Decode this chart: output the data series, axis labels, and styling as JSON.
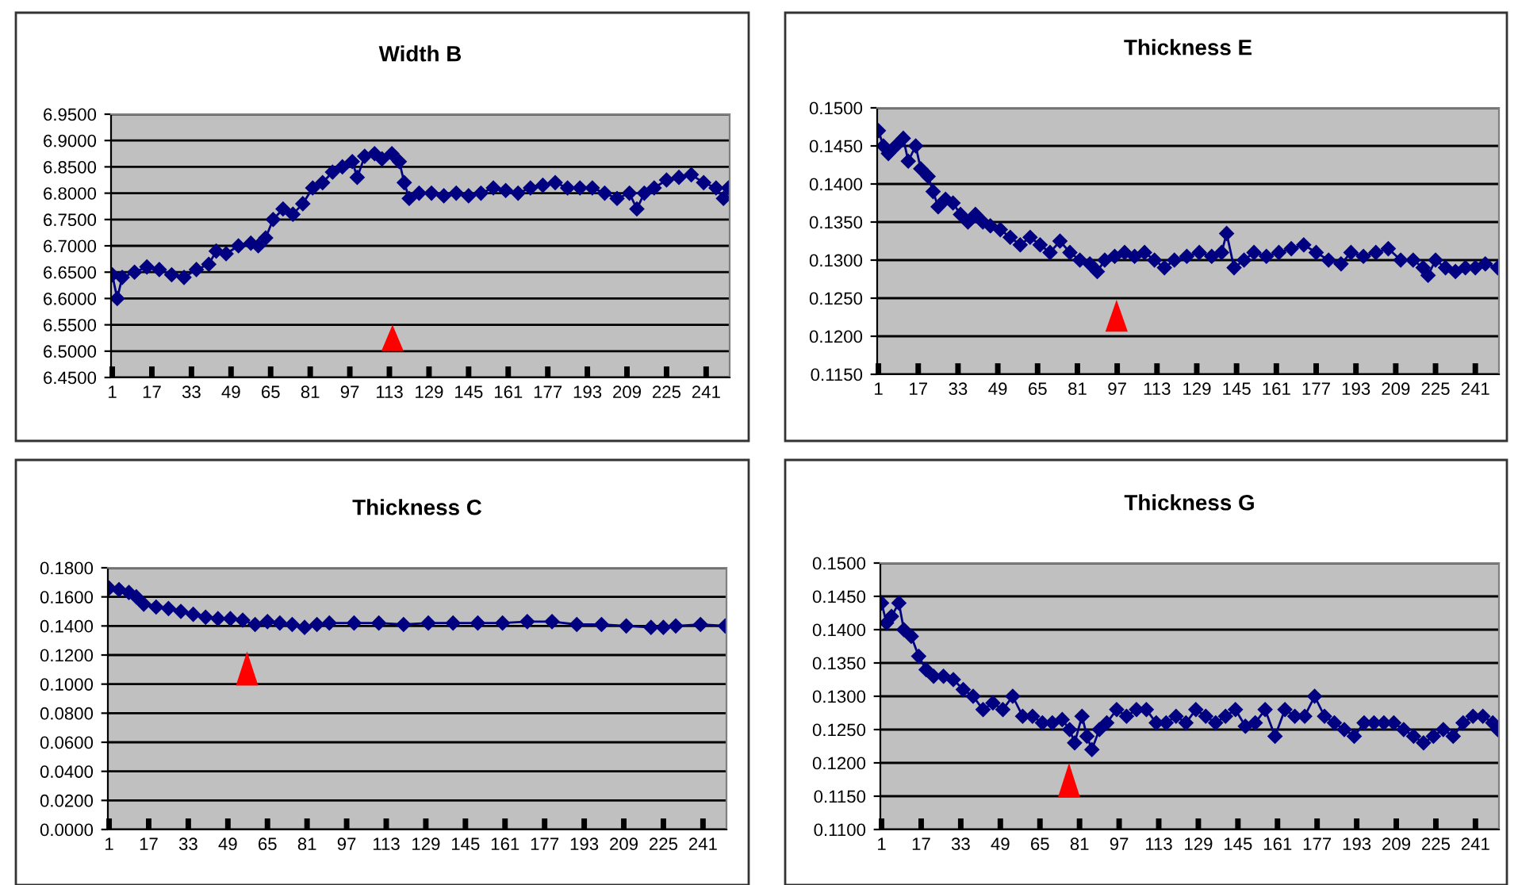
{
  "chart_data": [
    {
      "type": "line",
      "title": "Width B",
      "marker": "diamond",
      "line_style": "solid",
      "grid": "y",
      "xlim": [
        0.5,
        250.5
      ],
      "xticks": [
        1,
        17,
        33,
        49,
        65,
        81,
        97,
        113,
        129,
        145,
        161,
        177,
        193,
        209,
        225,
        241
      ],
      "ylim": [
        6.45,
        6.95
      ],
      "yticks": [
        {
          "value": 6.45,
          "label": "6.4500"
        },
        {
          "value": 6.5,
          "label": "6.5000"
        },
        {
          "value": 6.55,
          "label": "6.5500"
        },
        {
          "value": 6.6,
          "label": "6.6000"
        },
        {
          "value": 6.65,
          "label": "6.6500"
        },
        {
          "value": 6.7,
          "label": "6.7000"
        },
        {
          "value": 6.75,
          "label": "6.7500"
        },
        {
          "value": 6.8,
          "label": "6.8000"
        },
        {
          "value": 6.85,
          "label": "6.8500"
        },
        {
          "value": 6.9,
          "label": "6.9000"
        },
        {
          "value": 6.95,
          "label": "6.9500"
        }
      ],
      "series": [
        {
          "color": "#000080",
          "x": [
            1,
            3,
            5,
            10,
            15,
            20,
            25,
            30,
            35,
            40,
            43,
            47,
            52,
            57,
            60,
            63,
            66,
            70,
            74,
            78,
            82,
            86,
            90,
            94,
            98,
            100,
            103,
            107,
            110,
            114,
            117,
            119,
            121,
            125,
            130,
            135,
            140,
            145,
            150,
            155,
            160,
            165,
            170,
            175,
            180,
            185,
            190,
            195,
            200,
            205,
            210,
            213,
            216,
            220,
            225,
            230,
            235,
            240,
            245,
            248,
            250
          ],
          "values": [
            6.645,
            6.6,
            6.64,
            6.65,
            6.66,
            6.655,
            6.645,
            6.64,
            6.655,
            6.665,
            6.69,
            6.685,
            6.7,
            6.705,
            6.7,
            6.715,
            6.75,
            6.77,
            6.76,
            6.78,
            6.81,
            6.82,
            6.84,
            6.85,
            6.86,
            6.83,
            6.87,
            6.875,
            6.865,
            6.875,
            6.86,
            6.82,
            6.79,
            6.8,
            6.8,
            6.795,
            6.8,
            6.795,
            6.8,
            6.81,
            6.805,
            6.8,
            6.81,
            6.815,
            6.82,
            6.81,
            6.81,
            6.81,
            6.8,
            6.79,
            6.8,
            6.77,
            6.8,
            6.81,
            6.825,
            6.83,
            6.835,
            6.82,
            6.81,
            6.79,
            6.81
          ]
        }
      ]
    },
    {
      "type": "line",
      "title": "Thickness E",
      "marker": "diamond",
      "line_style": "solid",
      "grid": "y",
      "xlim": [
        0.5,
        250.5
      ],
      "xticks": [
        1,
        17,
        33,
        49,
        65,
        81,
        97,
        113,
        129,
        145,
        161,
        177,
        193,
        209,
        225,
        241
      ],
      "ylim": [
        0.115,
        0.15
      ],
      "yticks": [
        {
          "value": 0.115,
          "label": "0.1150"
        },
        {
          "value": 0.12,
          "label": "0.1200"
        },
        {
          "value": 0.125,
          "label": "0.1250"
        },
        {
          "value": 0.13,
          "label": "0.1300"
        },
        {
          "value": 0.135,
          "label": "0.1350"
        },
        {
          "value": 0.14,
          "label": "0.1400"
        },
        {
          "value": 0.145,
          "label": "0.1450"
        },
        {
          "value": 0.15,
          "label": "0.1500"
        }
      ],
      "series": [
        {
          "color": "#000080",
          "x": [
            1,
            3,
            5,
            8,
            11,
            13,
            16,
            18,
            21,
            23,
            25,
            28,
            31,
            34,
            37,
            40,
            43,
            46,
            50,
            54,
            58,
            62,
            66,
            70,
            74,
            78,
            82,
            86,
            89,
            92,
            96,
            100,
            104,
            108,
            112,
            116,
            120,
            125,
            130,
            135,
            139,
            141,
            144,
            148,
            152,
            157,
            162,
            167,
            172,
            177,
            182,
            187,
            191,
            196,
            201,
            206,
            211,
            216,
            220,
            222,
            225,
            229,
            233,
            237,
            241,
            245,
            250
          ],
          "values": [
            0.147,
            0.145,
            0.144,
            0.145,
            0.146,
            0.143,
            0.145,
            0.142,
            0.141,
            0.139,
            0.137,
            0.138,
            0.1375,
            0.136,
            0.135,
            0.136,
            0.135,
            0.1345,
            0.134,
            0.133,
            0.132,
            0.133,
            0.132,
            0.131,
            0.1325,
            0.131,
            0.13,
            0.1295,
            0.1285,
            0.13,
            0.1305,
            0.131,
            0.1305,
            0.131,
            0.13,
            0.129,
            0.13,
            0.1305,
            0.131,
            0.1305,
            0.131,
            0.1335,
            0.129,
            0.13,
            0.131,
            0.1305,
            0.131,
            0.1315,
            0.132,
            0.131,
            0.13,
            0.1295,
            0.131,
            0.1305,
            0.131,
            0.1315,
            0.13,
            0.13,
            0.129,
            0.128,
            0.13,
            0.129,
            0.1285,
            0.129,
            0.129,
            0.1295,
            0.129
          ]
        }
      ]
    },
    {
      "type": "line",
      "title": "Thickness C",
      "marker": "diamond",
      "line_style": "solid",
      "grid": "y",
      "xlim": [
        0.5,
        250.5
      ],
      "xticks": [
        1,
        17,
        33,
        49,
        65,
        81,
        97,
        113,
        129,
        145,
        161,
        177,
        193,
        209,
        225,
        241
      ],
      "ylim": [
        0,
        0.18
      ],
      "yticks": [
        {
          "value": 0,
          "label": "0.0000"
        },
        {
          "value": 0.02,
          "label": "0.0200"
        },
        {
          "value": 0.04,
          "label": "0.0400"
        },
        {
          "value": 0.06,
          "label": "0.0600"
        },
        {
          "value": 0.08,
          "label": "0.0800"
        },
        {
          "value": 0.1,
          "label": "0.1000"
        },
        {
          "value": 0.12,
          "label": "0.1200"
        },
        {
          "value": 0.14,
          "label": "0.1400"
        },
        {
          "value": 0.16,
          "label": "0.1600"
        },
        {
          "value": 0.18,
          "label": "0.1800"
        }
      ],
      "series": [
        {
          "color": "#000080",
          "x": [
            1,
            5,
            9,
            12,
            15,
            20,
            25,
            30,
            35,
            40,
            45,
            50,
            55,
            60,
            65,
            70,
            75,
            80,
            85,
            90,
            100,
            110,
            120,
            130,
            140,
            150,
            160,
            170,
            180,
            190,
            200,
            210,
            220,
            225,
            230,
            240,
            250
          ],
          "values": [
            0.166,
            0.165,
            0.163,
            0.16,
            0.155,
            0.153,
            0.152,
            0.15,
            0.148,
            0.146,
            0.145,
            0.145,
            0.144,
            0.141,
            0.143,
            0.142,
            0.141,
            0.139,
            0.141,
            0.142,
            0.142,
            0.142,
            0.141,
            0.142,
            0.142,
            0.142,
            0.142,
            0.143,
            0.143,
            0.141,
            0.141,
            0.14,
            0.139,
            0.139,
            0.14,
            0.141,
            0.14
          ]
        }
      ]
    },
    {
      "type": "line",
      "title": "Thickness G",
      "marker": "diamond",
      "line_style": "solid",
      "grid": "y",
      "xlim": [
        0.5,
        250.5
      ],
      "xticks": [
        1,
        17,
        33,
        49,
        65,
        81,
        97,
        113,
        129,
        145,
        161,
        177,
        193,
        209,
        225,
        241
      ],
      "ylim": [
        0.11,
        0.15
      ],
      "yticks": [
        {
          "value": 0.11,
          "label": "0.1100"
        },
        {
          "value": 0.115,
          "label": "0.1150"
        },
        {
          "value": 0.12,
          "label": "0.1200"
        },
        {
          "value": 0.125,
          "label": "0.1250"
        },
        {
          "value": 0.13,
          "label": "0.1300"
        },
        {
          "value": 0.135,
          "label": "0.1350"
        },
        {
          "value": 0.14,
          "label": "0.1400"
        },
        {
          "value": 0.145,
          "label": "0.1450"
        },
        {
          "value": 0.15,
          "label": "0.1500"
        }
      ],
      "series": [
        {
          "color": "#000080",
          "x": [
            1,
            3,
            5,
            8,
            10,
            13,
            16,
            19,
            22,
            26,
            30,
            34,
            38,
            42,
            46,
            50,
            54,
            58,
            62,
            66,
            70,
            74,
            77,
            79,
            82,
            84,
            86,
            89,
            92,
            96,
            100,
            104,
            108,
            112,
            116,
            120,
            124,
            128,
            132,
            136,
            140,
            144,
            148,
            152,
            156,
            160,
            164,
            168,
            172,
            176,
            180,
            184,
            188,
            192,
            196,
            200,
            204,
            208,
            212,
            216,
            220,
            224,
            228,
            232,
            236,
            240,
            244,
            248,
            250
          ],
          "values": [
            0.144,
            0.141,
            0.142,
            0.144,
            0.14,
            0.139,
            0.136,
            0.134,
            0.133,
            0.133,
            0.1325,
            0.131,
            0.13,
            0.128,
            0.129,
            0.128,
            0.13,
            0.127,
            0.127,
            0.126,
            0.126,
            0.1265,
            0.125,
            0.123,
            0.127,
            0.124,
            0.122,
            0.125,
            0.126,
            0.128,
            0.127,
            0.128,
            0.128,
            0.126,
            0.126,
            0.127,
            0.126,
            0.128,
            0.127,
            0.126,
            0.127,
            0.128,
            0.1255,
            0.126,
            0.128,
            0.124,
            0.128,
            0.127,
            0.127,
            0.13,
            0.127,
            0.126,
            0.125,
            0.124,
            0.126,
            0.126,
            0.126,
            0.126,
            0.125,
            0.124,
            0.123,
            0.124,
            0.125,
            0.124,
            0.126,
            0.127,
            0.127,
            0.126,
            0.125
          ]
        }
      ]
    }
  ]
}
